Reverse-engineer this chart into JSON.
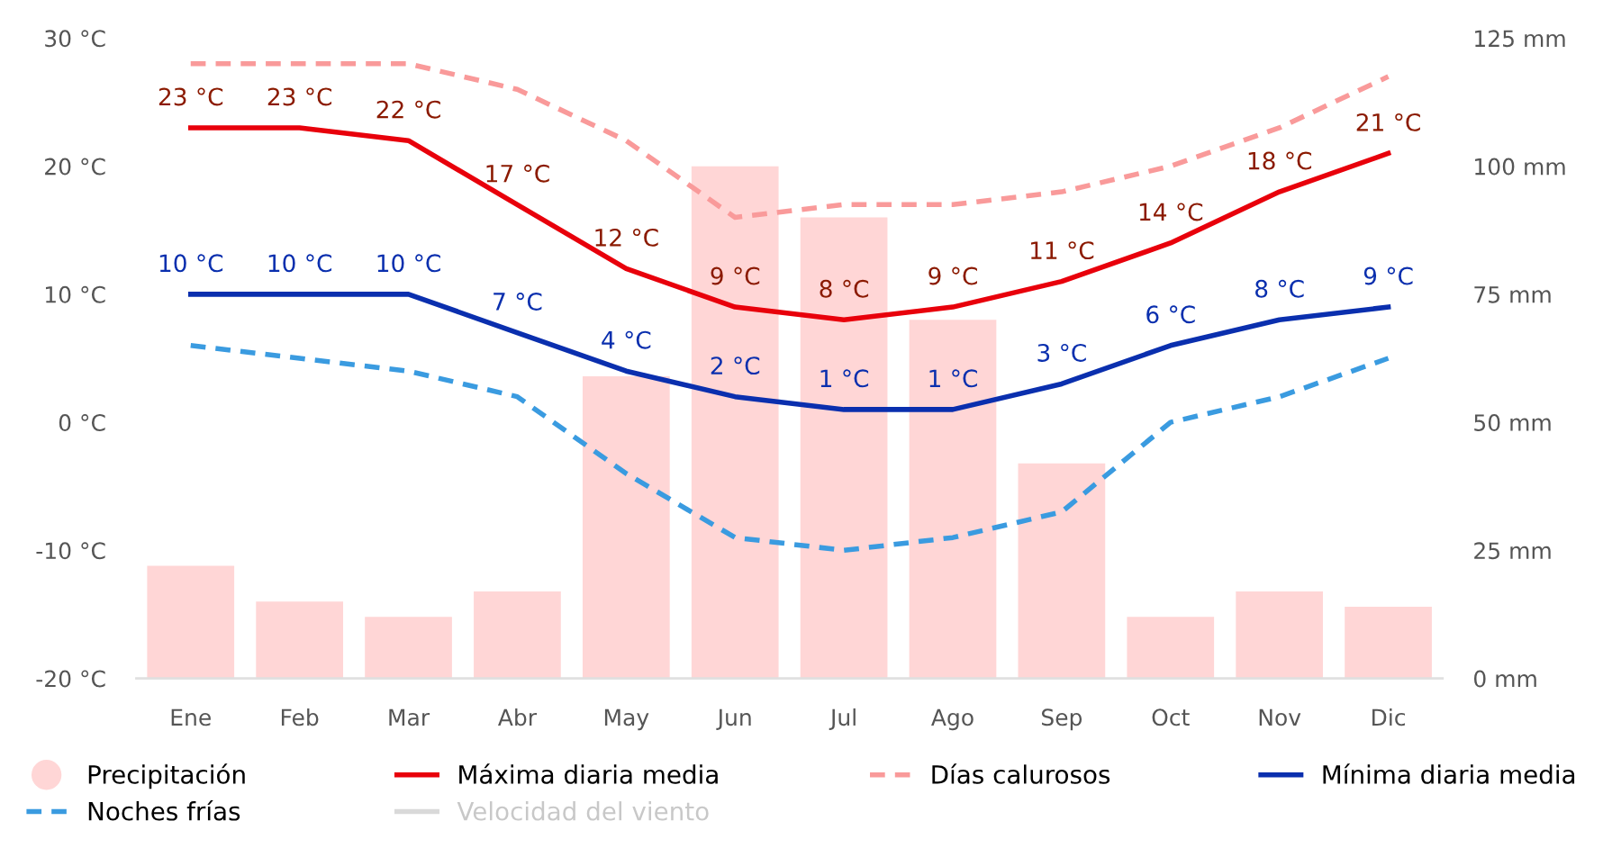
{
  "chart_data": {
    "type": "bar",
    "categories": [
      "Ene",
      "Feb",
      "Mar",
      "Abr",
      "May",
      "Jun",
      "Jul",
      "Ago",
      "Sep",
      "Oct",
      "Nov",
      "Dic"
    ],
    "series": [
      {
        "name": "Precipitación",
        "axis": "y2",
        "color": "#ffd6d6",
        "values": [
          22,
          15,
          12,
          17,
          59,
          100,
          90,
          70,
          42,
          12,
          17,
          14
        ]
      },
      {
        "name": "Máxima diaria media",
        "type": "line",
        "color": "#e8000b",
        "line_style": "solid",
        "values": [
          23,
          23,
          22,
          17,
          12,
          9,
          8,
          9,
          11,
          14,
          18,
          21
        ],
        "value_labels": [
          "23 °C",
          "23 °C",
          "22 °C",
          "17 °C",
          "12 °C",
          "9 °C",
          "8 °C",
          "9 °C",
          "11 °C",
          "14 °C",
          "18 °C",
          "21 °C"
        ]
      },
      {
        "name": "Días calurosos",
        "type": "line",
        "color": "#f99a9a",
        "line_style": "dashed",
        "values": [
          28,
          28,
          28,
          26,
          22,
          16,
          17,
          17,
          18,
          20,
          23,
          27
        ]
      },
      {
        "name": "Mínima diaria media",
        "type": "line",
        "color": "#0a2fae",
        "line_style": "solid",
        "values": [
          10,
          10,
          10,
          7,
          4,
          2,
          1,
          1,
          3,
          6,
          8,
          9
        ],
        "value_labels": [
          "10 °C",
          "10 °C",
          "10 °C",
          "7 °C",
          "4 °C",
          "2 °C",
          "1 °C",
          "1 °C",
          "3 °C",
          "6 °C",
          "8 °C",
          "9 °C"
        ]
      },
      {
        "name": "Noches frías",
        "type": "line",
        "color": "#3a9be0",
        "line_style": "dashed",
        "values": [
          6,
          5,
          4,
          2,
          -4,
          -9,
          -10,
          -9,
          -7,
          0,
          2,
          5
        ]
      },
      {
        "name": "Velocidad del viento",
        "type": "line",
        "color": "#d9d9d9",
        "line_style": "solid",
        "values": [
          null,
          null,
          null,
          null,
          null,
          null,
          null,
          null,
          null,
          null,
          null,
          null
        ]
      }
    ],
    "ylim": [
      -20,
      30
    ],
    "yticks": [
      {
        "value": -20,
        "label": "-20 °C"
      },
      {
        "value": -10,
        "label": "-10 °C"
      },
      {
        "value": 0,
        "label": "0 °C"
      },
      {
        "value": 10,
        "label": "10 °C"
      },
      {
        "value": 20,
        "label": "20 °C"
      },
      {
        "value": 30,
        "label": "30 °C"
      }
    ],
    "y2lim": [
      0,
      125
    ],
    "y2ticks": [
      {
        "value": 0,
        "label": "0 mm"
      },
      {
        "value": 25,
        "label": "25 mm"
      },
      {
        "value": 50,
        "label": "50 mm"
      },
      {
        "value": 75,
        "label": "75 mm"
      },
      {
        "value": 100,
        "label": "100 mm"
      },
      {
        "value": 125,
        "label": "125 mm"
      }
    ],
    "grid": false,
    "legend": "bottom"
  }
}
